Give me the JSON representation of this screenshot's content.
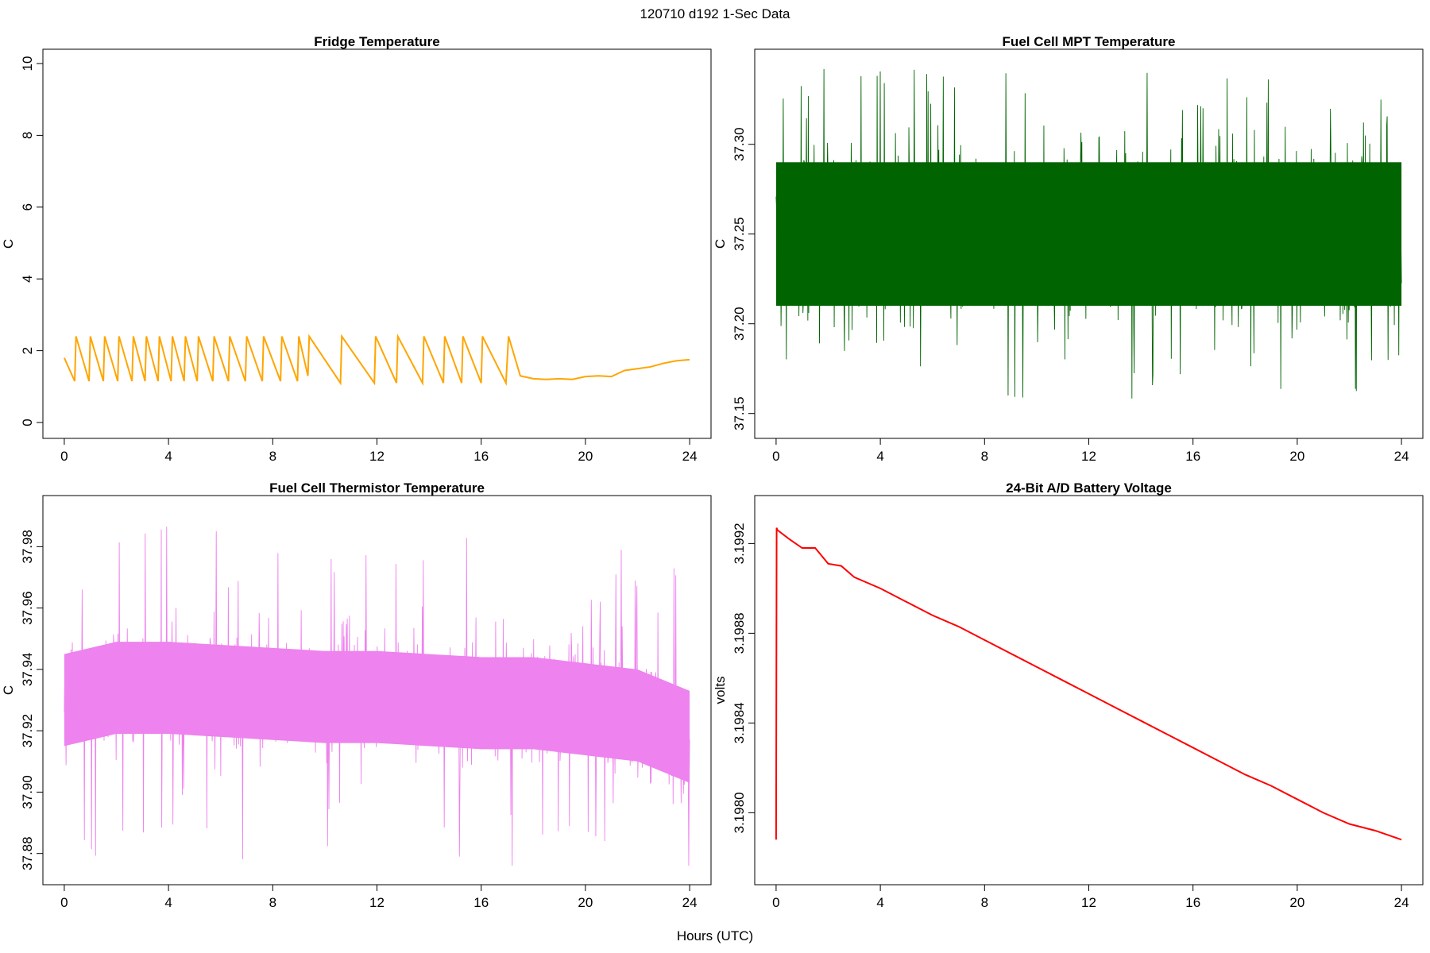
{
  "figure": {
    "title": "120710   d192   1-Sec Data",
    "xlabel": "Hours (UTC)"
  },
  "chart_data": [
    {
      "type": "line",
      "title": "Fridge Temperature",
      "ylabel": "C",
      "color": "#FFA500",
      "xlim": [
        0,
        24
      ],
      "ylim": [
        0,
        10
      ],
      "x_ticks": [
        "0",
        "4",
        "8",
        "12",
        "16",
        "20",
        "24"
      ],
      "y_ticks": [
        "0",
        "2",
        "4",
        "6",
        "8",
        "10"
      ],
      "series": [
        {
          "values_description_x": "hours",
          "x": [
            0.0,
            0.4,
            0.45,
            0.95,
            1.0,
            1.5,
            1.55,
            2.05,
            2.1,
            2.6,
            2.65,
            3.1,
            3.15,
            3.6,
            3.65,
            4.1,
            4.15,
            4.6,
            4.65,
            5.1,
            5.15,
            5.7,
            5.75,
            6.3,
            6.35,
            6.95,
            7.0,
            7.6,
            7.65,
            8.3,
            8.35,
            8.95,
            9.0,
            9.35,
            9.4,
            10.6,
            10.65,
            11.9,
            11.95,
            12.75,
            12.8,
            13.75,
            13.8,
            14.55,
            14.6,
            15.25,
            15.3,
            16.0,
            16.05,
            16.95,
            17.05,
            17.5,
            18.0,
            18.5,
            19.0,
            19.5,
            20.0,
            20.5,
            21.0,
            21.5,
            22.0,
            22.5,
            23.0,
            23.5,
            24.0
          ],
          "y": [
            1.8,
            1.15,
            2.4,
            1.15,
            2.4,
            1.15,
            2.4,
            1.15,
            2.4,
            1.15,
            2.4,
            1.15,
            2.4,
            1.15,
            2.4,
            1.15,
            2.4,
            1.15,
            2.4,
            1.15,
            2.4,
            1.15,
            2.4,
            1.15,
            2.4,
            1.15,
            2.4,
            1.15,
            2.4,
            1.15,
            2.4,
            1.15,
            2.4,
            1.3,
            2.4,
            1.1,
            2.4,
            1.1,
            2.4,
            1.1,
            2.4,
            1.1,
            2.4,
            1.1,
            2.4,
            1.1,
            2.4,
            1.1,
            2.4,
            1.1,
            2.4,
            1.3,
            1.22,
            1.2,
            1.22,
            1.2,
            1.28,
            1.3,
            1.28,
            1.45,
            1.5,
            1.55,
            1.65,
            1.72,
            1.75
          ]
        }
      ]
    },
    {
      "type": "line",
      "title": "Fuel Cell MPT Temperature",
      "ylabel": "C",
      "color": "#006400",
      "xlim": [
        0,
        24
      ],
      "ylim": [
        37.145,
        37.345
      ],
      "x_ticks": [
        "0",
        "4",
        "8",
        "12",
        "16",
        "20",
        "24"
      ],
      "y_ticks": [
        "37.15",
        "37.20",
        "37.25",
        "37.30"
      ],
      "series": [
        {
          "mean": 37.25,
          "dense_band": [
            37.205,
            37.295
          ],
          "min": 37.148,
          "max": 37.342
        }
      ]
    },
    {
      "type": "line",
      "title": "Fuel Cell Thermistor Temperature",
      "ylabel": "C",
      "color": "#EE82EE",
      "xlim": [
        0,
        24
      ],
      "ylim": [
        37.875,
        37.992
      ],
      "x_ticks": [
        "0",
        "4",
        "8",
        "12",
        "16",
        "20",
        "24"
      ],
      "y_ticks": [
        "37.88",
        "37.90",
        "37.92",
        "37.94",
        "37.96",
        "37.98"
      ],
      "series": [
        {
          "x": [
            0,
            2,
            4,
            6,
            8,
            10,
            12,
            14,
            16,
            18,
            20,
            22,
            24
          ],
          "mean": [
            37.93,
            37.934,
            37.934,
            37.933,
            37.932,
            37.931,
            37.931,
            37.93,
            37.929,
            37.929,
            37.927,
            37.925,
            37.918
          ],
          "min": 37.876,
          "max": 37.99
        }
      ]
    },
    {
      "type": "line",
      "title": "24-Bit A/D Battery Voltage",
      "ylabel": "volts",
      "color": "#FF0000",
      "xlim": [
        0,
        24
      ],
      "ylim": [
        3.19775,
        3.19935
      ],
      "x_ticks": [
        "0",
        "4",
        "8",
        "12",
        "16",
        "20",
        "24"
      ],
      "y_ticks": [
        "3.1980",
        "3.1984",
        "3.1988",
        "3.1992"
      ],
      "series": [
        {
          "x": [
            0.0,
            0.02,
            0.05,
            0.5,
            1.0,
            1.5,
            2.0,
            2.5,
            3.0,
            4.0,
            5.0,
            6.0,
            7.0,
            8.0,
            9.0,
            10.0,
            11.0,
            12.0,
            13.0,
            14.0,
            15.0,
            16.0,
            17.0,
            18.0,
            19.0,
            20.0,
            21.0,
            22.0,
            23.0,
            24.0
          ],
          "y": [
            3.19788,
            3.19927,
            3.19926,
            3.19922,
            3.19918,
            3.19918,
            3.19911,
            3.1991,
            3.19905,
            3.199,
            3.19894,
            3.19888,
            3.19883,
            3.19877,
            3.19871,
            3.19865,
            3.19859,
            3.19853,
            3.19847,
            3.19841,
            3.19835,
            3.19829,
            3.19823,
            3.19817,
            3.19812,
            3.19806,
            3.198,
            3.19795,
            3.19792,
            3.19788
          ]
        }
      ]
    }
  ]
}
